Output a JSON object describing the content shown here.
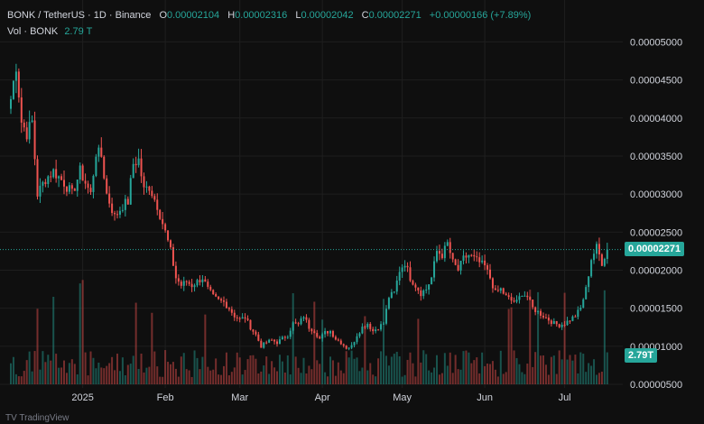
{
  "header": {
    "symbol": "BONK / TetherUS · 1D · Binance",
    "o_label": "O",
    "o_value": "0.00002104",
    "h_label": "H",
    "h_value": "0.00002316",
    "l_label": "L",
    "l_value": "0.00002042",
    "c_label": "C",
    "c_value": "0.00002271",
    "change": "+0.00000166 (+7.89%)"
  },
  "volume_legend": {
    "label": "Vol · BONK",
    "value": "2.79 T"
  },
  "current_price_tag": "0.00002271",
  "current_volume_tag": "2.79T",
  "footer_text": "TV TradingView",
  "colors": {
    "up": "#26a69a",
    "down": "#ef5350",
    "background": "#0f0f0f",
    "grid": "#1e1e1e",
    "axis_text": "#d1d4dc"
  },
  "chart_data": {
    "type": "candlestick",
    "ylim": [
      5e-06,
      5.1e-05
    ],
    "y_ticks": [
      "0.00005000",
      "0.00004500",
      "0.00004000",
      "0.00003500",
      "0.00003000",
      "0.00002500",
      "0.00002000",
      "0.00001500",
      "0.00001000",
      "0.00000500"
    ],
    "x_ticks": [
      "2025",
      "Feb",
      "Mar",
      "Apr",
      "May",
      "Jun",
      "Jul"
    ],
    "x_tick_days": [
      27,
      58,
      86,
      117,
      147,
      178,
      208
    ],
    "grid": true,
    "anchors": [
      [
        0,
        4.25e-05
      ],
      [
        2,
        4.7e-05
      ],
      [
        4,
        3.95e-05
      ],
      [
        6,
        3.8e-05
      ],
      [
        8,
        3.95e-05
      ],
      [
        10,
        3e-05
      ],
      [
        13,
        3.2e-05
      ],
      [
        16,
        3.3e-05
      ],
      [
        20,
        3.15e-05
      ],
      [
        23,
        3e-05
      ],
      [
        26,
        3.3e-05
      ],
      [
        28,
        3.15e-05
      ],
      [
        30,
        3e-05
      ],
      [
        32,
        3.55e-05
      ],
      [
        34,
        3.5e-05
      ],
      [
        36,
        3e-05
      ],
      [
        39,
        2.7e-05
      ],
      [
        42,
        2.85e-05
      ],
      [
        44,
        2.9e-05
      ],
      [
        46,
        3.4e-05
      ],
      [
        48,
        3.45e-05
      ],
      [
        50,
        3.05e-05
      ],
      [
        52,
        3.1e-05
      ],
      [
        55,
        2.85e-05
      ],
      [
        58,
        2.5e-05
      ],
      [
        60,
        2.25e-05
      ],
      [
        62,
        1.9e-05
      ],
      [
        64,
        1.8e-05
      ],
      [
        66,
        1.85e-05
      ],
      [
        68,
        1.8e-05
      ],
      [
        70,
        1.85e-05
      ],
      [
        72,
        1.9e-05
      ],
      [
        74,
        1.75e-05
      ],
      [
        76,
        1.65e-05
      ],
      [
        78,
        1.6e-05
      ],
      [
        80,
        1.58e-05
      ],
      [
        82,
        1.5e-05
      ],
      [
        84,
        1.4e-05
      ],
      [
        86,
        1.35e-05
      ],
      [
        88,
        1.38e-05
      ],
      [
        90,
        1.25e-05
      ],
      [
        92,
        1.15e-05
      ],
      [
        94,
        1e-05
      ],
      [
        96,
        1.05e-05
      ],
      [
        98,
        1.08e-05
      ],
      [
        100,
        1.05e-05
      ],
      [
        102,
        1.1e-05
      ],
      [
        104,
        1.15e-05
      ],
      [
        106,
        1.3e-05
      ],
      [
        108,
        1.28e-05
      ],
      [
        110,
        1.4e-05
      ],
      [
        112,
        1.25e-05
      ],
      [
        114,
        1.2e-05
      ],
      [
        116,
        1.1e-05
      ],
      [
        118,
        1.18e-05
      ],
      [
        120,
        1.2e-05
      ],
      [
        122,
        1.1e-05
      ],
      [
        124,
        1.05e-05
      ],
      [
        126,
        9.8e-06
      ],
      [
        128,
        1e-05
      ],
      [
        130,
        1.15e-05
      ],
      [
        132,
        1.25e-05
      ],
      [
        134,
        1.3e-05
      ],
      [
        136,
        1.2e-05
      ],
      [
        138,
        1.25e-05
      ],
      [
        140,
        1.3e-05
      ],
      [
        142,
        1.65e-05
      ],
      [
        144,
        1.7e-05
      ],
      [
        146,
        2e-05
      ],
      [
        148,
        2.1e-05
      ],
      [
        150,
        1.9e-05
      ],
      [
        152,
        1.8e-05
      ],
      [
        154,
        1.7e-05
      ],
      [
        156,
        1.75e-05
      ],
      [
        158,
        1.9e-05
      ],
      [
        160,
        2.25e-05
      ],
      [
        162,
        2.2e-05
      ],
      [
        164,
        2.35e-05
      ],
      [
        166,
        2.1e-05
      ],
      [
        168,
        2e-05
      ],
      [
        170,
        2.15e-05
      ],
      [
        172,
        2.2e-05
      ],
      [
        174,
        2.15e-05
      ],
      [
        176,
        2.1e-05
      ],
      [
        178,
        2.05e-05
      ],
      [
        180,
        1.9e-05
      ],
      [
        182,
        1.7e-05
      ],
      [
        184,
        1.75e-05
      ],
      [
        186,
        1.65e-05
      ],
      [
        188,
        1.6e-05
      ],
      [
        190,
        1.58e-05
      ],
      [
        192,
        1.7e-05
      ],
      [
        194,
        1.65e-05
      ],
      [
        196,
        1.5e-05
      ],
      [
        198,
        1.45e-05
      ],
      [
        200,
        1.4e-05
      ],
      [
        202,
        1.35e-05
      ],
      [
        204,
        1.3e-05
      ],
      [
        206,
        1.28e-05
      ],
      [
        208,
        1.3e-05
      ],
      [
        210,
        1.35e-05
      ],
      [
        212,
        1.4e-05
      ],
      [
        214,
        1.5e-05
      ],
      [
        216,
        1.75e-05
      ],
      [
        218,
        2.15e-05
      ],
      [
        220,
        2.3e-05
      ],
      [
        222,
        2.1e-05
      ],
      [
        224,
        2.27e-05
      ]
    ],
    "current_price": 2.271e-05
  }
}
